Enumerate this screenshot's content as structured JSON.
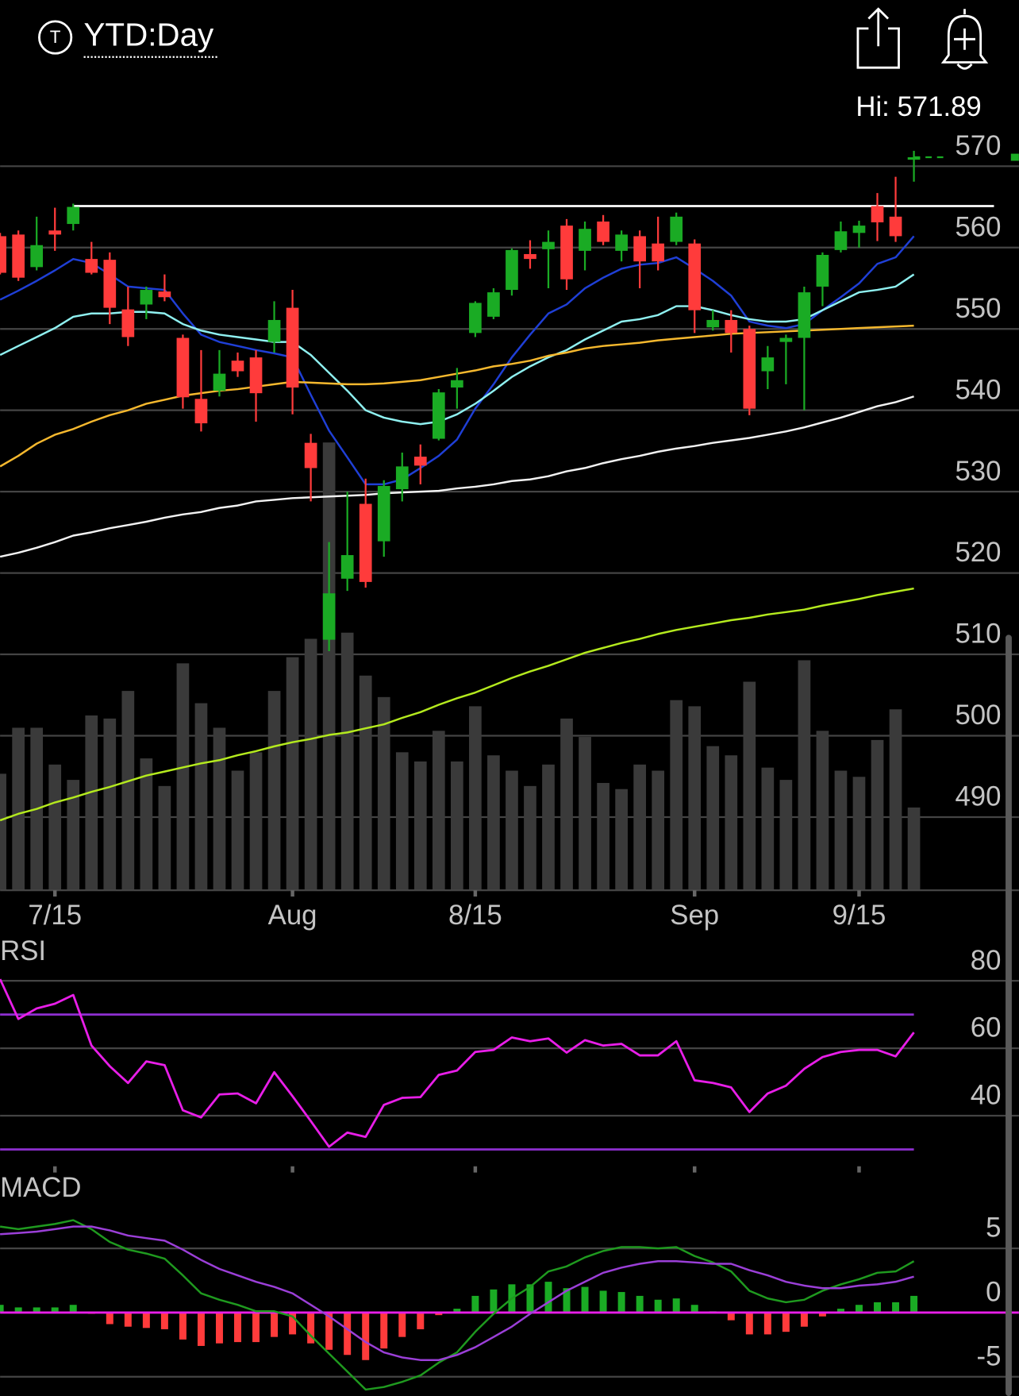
{
  "header": {
    "icon_letter": "T",
    "timeframe": "YTD:Day",
    "high_label": "Hi: 571.89"
  },
  "chart_data": [
    {
      "type": "candlestick",
      "categories": [
        null,
        null,
        null,
        "7/15",
        null,
        null,
        null,
        null,
        null,
        null,
        null,
        null,
        null,
        null,
        null,
        null,
        "Aug",
        null,
        null,
        null,
        null,
        null,
        null,
        null,
        null,
        null,
        "8/15",
        null,
        null,
        null,
        null,
        null,
        null,
        null,
        null,
        null,
        null,
        null,
        "Sep",
        null,
        null,
        null,
        null,
        null,
        null,
        null,
        null,
        "9/15",
        null,
        null,
        null
      ],
      "open": [
        561.4,
        561.6,
        557.6,
        562.1,
        562.9,
        558.6,
        558.5,
        552.4,
        553.0,
        554.6,
        548.9,
        541.4,
        542.4,
        546.1,
        546.5,
        548.4,
        552.6,
        536.0,
        511.8,
        519.3,
        528.5,
        523.9,
        530.3,
        534.3,
        536.5,
        542.8,
        549.5,
        551.5,
        554.8,
        559.2,
        559.8,
        562.7,
        559.6,
        563.2,
        559.6,
        561.4,
        560.5,
        560.7,
        560.5,
        550.2,
        551.1,
        550.0,
        544.8,
        548.4,
        548.9,
        555.2,
        559.7,
        561.8,
        565.1,
        563.8,
        570.8
      ],
      "high": [
        561.8,
        562.1,
        563.8,
        564.9,
        565.4,
        560.7,
        559.4,
        555.2,
        555.2,
        556.7,
        549.3,
        547.4,
        547.4,
        547.1,
        547.4,
        553.4,
        554.8,
        537.1,
        523.8,
        530.0,
        531.6,
        531.4,
        534.8,
        535.8,
        542.6,
        545.2,
        553.4,
        555.0,
        559.9,
        560.9,
        562.1,
        563.5,
        563.2,
        564.0,
        562.1,
        562.1,
        563.8,
        564.3,
        561.0,
        552.3,
        552.3,
        550.4,
        547.9,
        549.3,
        555.2,
        559.4,
        563.2,
        563.3,
        566.7,
        568.7,
        571.89
      ],
      "low": [
        556.7,
        555.9,
        557.2,
        559.6,
        562.1,
        556.7,
        550.6,
        547.9,
        551.2,
        553.4,
        540.2,
        537.4,
        541.7,
        544.1,
        538.6,
        547.1,
        539.5,
        528.8,
        510.4,
        517.8,
        518.2,
        522.0,
        528.8,
        530.9,
        536.3,
        540.2,
        549.0,
        551.2,
        554.1,
        557.4,
        555.0,
        554.8,
        557.2,
        560.3,
        558.3,
        555.0,
        557.2,
        560.3,
        549.5,
        549.8,
        547.1,
        539.4,
        542.6,
        543.2,
        540.0,
        552.8,
        559.4,
        560.0,
        560.8,
        560.7,
        568.1
      ],
      "close": [
        556.9,
        556.3,
        560.3,
        561.6,
        565.0,
        556.9,
        552.6,
        549.0,
        554.8,
        553.9,
        541.6,
        538.4,
        544.5,
        544.8,
        542.1,
        551.1,
        542.8,
        532.9,
        517.5,
        522.2,
        518.9,
        530.7,
        533.1,
        533.2,
        542.2,
        543.7,
        553.2,
        554.5,
        559.7,
        558.6,
        560.7,
        556.1,
        562.3,
        560.7,
        561.6,
        558.3,
        558.3,
        563.8,
        552.3,
        551.1,
        549.5,
        540.2,
        546.5,
        548.9,
        554.5,
        559.1,
        562.0,
        562.7,
        563.1,
        561.4,
        571.1
      ],
      "up_color": "#1aab24",
      "down_color": "#ff3b3b",
      "ylim": [
        481,
        575
      ],
      "yticks": [
        490,
        500,
        510,
        520,
        530,
        540,
        550,
        560,
        570
      ],
      "grid": true,
      "reference_line": {
        "value": 565.1,
        "color": "#ffffff"
      },
      "volume": {
        "color": "#3a3a3a",
        "values": [
          38,
          53,
          53,
          41,
          36,
          57,
          56,
          65,
          43,
          34,
          74,
          61,
          53,
          39,
          45,
          65,
          76,
          82,
          146,
          84,
          70,
          63,
          45,
          42,
          52,
          42,
          60,
          44,
          39,
          34,
          41,
          56,
          50,
          35,
          33,
          41,
          39,
          62,
          60,
          47,
          44,
          68,
          40,
          36,
          75,
          52,
          39,
          37,
          49,
          59,
          27
        ]
      },
      "moving_averages": [
        {
          "color": "#1f3fd6",
          "values": [
            553.6,
            554.7,
            555.9,
            557.2,
            558.6,
            558.1,
            556.7,
            555.2,
            555.0,
            554.8,
            551.9,
            549.3,
            548.4,
            547.9,
            547.4,
            547.0,
            546.5,
            541.9,
            537.5,
            534.2,
            530.9,
            530.9,
            531.5,
            532.9,
            534.4,
            536.4,
            540.2,
            543.2,
            546.5,
            549.3,
            551.9,
            553.0,
            555.0,
            556.3,
            557.4,
            557.9,
            558.1,
            558.8,
            557.4,
            555.9,
            554.1,
            550.9,
            550.4,
            550.1,
            550.6,
            552.3,
            553.9,
            555.6,
            558.0,
            558.8,
            561.4
          ]
        },
        {
          "color": "#8ff0f0",
          "values": [
            546.8,
            547.9,
            549.0,
            550.1,
            551.5,
            551.9,
            551.9,
            552.1,
            552.1,
            551.9,
            550.6,
            549.8,
            549.3,
            549.0,
            548.7,
            548.4,
            548.4,
            546.8,
            544.6,
            542.4,
            540.0,
            539.1,
            538.6,
            538.3,
            538.6,
            539.5,
            540.8,
            542.4,
            544.1,
            545.4,
            546.5,
            547.4,
            548.7,
            549.8,
            550.9,
            551.2,
            551.7,
            552.8,
            552.8,
            552.3,
            551.7,
            551.2,
            550.9,
            550.9,
            551.2,
            552.3,
            553.4,
            554.5,
            554.8,
            555.2,
            556.7
          ]
        },
        {
          "color": "#f5b82e",
          "values": [
            533.1,
            534.4,
            535.9,
            537.0,
            537.7,
            538.6,
            539.4,
            540.0,
            540.8,
            541.3,
            541.8,
            542.1,
            542.4,
            542.6,
            542.9,
            543.2,
            543.5,
            543.4,
            543.3,
            543.2,
            543.2,
            543.3,
            543.5,
            543.7,
            544.1,
            544.5,
            544.9,
            545.4,
            545.7,
            546.1,
            546.7,
            547.1,
            547.6,
            547.9,
            548.1,
            548.3,
            548.6,
            548.8,
            549.0,
            549.2,
            549.4,
            549.5,
            549.6,
            549.7,
            549.8,
            549.9,
            550.0,
            550.1,
            550.2,
            550.3,
            550.4
          ]
        },
        {
          "color": "#f2f2f2",
          "values": [
            522.0,
            522.5,
            523.1,
            523.8,
            524.6,
            525.0,
            525.5,
            525.9,
            526.3,
            526.8,
            527.2,
            527.5,
            528.0,
            528.3,
            528.8,
            529.0,
            529.2,
            529.3,
            529.4,
            529.5,
            529.6,
            529.8,
            529.9,
            530.0,
            530.1,
            530.4,
            530.6,
            530.9,
            531.3,
            531.5,
            531.9,
            532.5,
            532.9,
            533.5,
            534.0,
            534.4,
            534.9,
            535.3,
            535.6,
            536.0,
            536.3,
            536.6,
            537.0,
            537.4,
            537.9,
            538.5,
            539.1,
            539.8,
            540.5,
            541.0,
            541.7
          ]
        },
        {
          "color": "#b4ea1e",
          "values": [
            489.6,
            490.4,
            491.0,
            491.8,
            492.4,
            493.1,
            493.7,
            494.4,
            495.1,
            495.6,
            496.1,
            496.6,
            497.0,
            497.6,
            498.1,
            498.7,
            499.2,
            499.6,
            500.1,
            500.4,
            500.9,
            501.4,
            502.2,
            502.9,
            503.8,
            504.6,
            505.3,
            506.2,
            507.1,
            507.9,
            508.6,
            509.4,
            510.2,
            510.8,
            511.4,
            511.9,
            512.5,
            513.0,
            513.4,
            513.8,
            514.2,
            514.5,
            514.9,
            515.2,
            515.5,
            516.0,
            516.4,
            516.8,
            517.3,
            517.7,
            518.1
          ]
        }
      ]
    },
    {
      "type": "line",
      "title": "RSI",
      "ylim": [
        25,
        91
      ],
      "yticks": [
        40,
        60,
        80
      ],
      "grid": true,
      "bands": [
        {
          "value": 70,
          "color": "#8e2fd0"
        },
        {
          "value": 30,
          "color": "#8e2fd0"
        }
      ],
      "series": [
        {
          "color": "#e81ee8",
          "values": [
            80.5,
            68.7,
            71.8,
            73.2,
            75.8,
            60.8,
            54.7,
            49.7,
            56.1,
            55.0,
            41.6,
            39.5,
            46.3,
            46.6,
            43.7,
            52.9,
            45.8,
            38.4,
            30.8,
            35.0,
            33.7,
            43.2,
            45.3,
            45.5,
            52.1,
            53.4,
            58.9,
            59.5,
            63.2,
            62.1,
            62.9,
            58.7,
            62.4,
            60.8,
            61.3,
            57.9,
            57.9,
            62.1,
            50.5,
            49.7,
            48.4,
            41.1,
            46.6,
            48.9,
            53.9,
            57.4,
            58.9,
            59.5,
            59.5,
            57.6,
            64.7
          ]
        }
      ]
    },
    {
      "type": "macd",
      "title": "MACD",
      "ylim": [
        -6.5,
        10.7
      ],
      "yticks": [
        -5,
        0,
        5
      ],
      "grid": true,
      "zero_color": "#e81ee8",
      "histogram": {
        "up_color": "#1aab24",
        "down_color": "#ff3b3b",
        "values": [
          0.6,
          0.4,
          0.4,
          0.4,
          0.6,
          -0.1,
          -0.9,
          -1.1,
          -1.2,
          -1.3,
          -2.1,
          -2.6,
          -2.4,
          -2.3,
          -2.3,
          -1.9,
          -1.7,
          -2.4,
          -2.9,
          -3.3,
          -3.7,
          -2.8,
          -1.9,
          -1.3,
          -0.2,
          0.3,
          1.3,
          1.8,
          2.2,
          2.2,
          2.4,
          1.9,
          2.0,
          1.7,
          1.6,
          1.3,
          1.0,
          1.1,
          0.6,
          0.1,
          -0.6,
          -1.7,
          -1.7,
          -1.5,
          -1.1,
          -0.3,
          0.3,
          0.6,
          0.8,
          0.8,
          1.3
        ]
      },
      "series": [
        {
          "color": "#1f9a1f",
          "values": [
            6.7,
            6.5,
            6.7,
            6.9,
            7.2,
            6.5,
            5.5,
            4.9,
            4.6,
            4.2,
            2.9,
            1.5,
            1.0,
            0.6,
            0.1,
            0.1,
            -0.3,
            -1.8,
            -3.2,
            -4.6,
            -6.0,
            -5.8,
            -5.4,
            -4.9,
            -3.9,
            -3.1,
            -1.5,
            -0.1,
            1.1,
            2.0,
            3.2,
            3.6,
            4.3,
            4.8,
            5.1,
            5.1,
            5.0,
            5.1,
            4.4,
            3.9,
            3.2,
            1.7,
            1.1,
            0.8,
            1.0,
            1.7,
            2.2,
            2.6,
            3.1,
            3.2,
            4.0
          ]
        },
        {
          "color": "#9b3fd8",
          "values": [
            6.1,
            6.2,
            6.3,
            6.5,
            6.7,
            6.7,
            6.4,
            6.0,
            5.8,
            5.6,
            4.9,
            4.1,
            3.4,
            2.9,
            2.4,
            2.0,
            1.5,
            0.6,
            -0.3,
            -1.3,
            -2.3,
            -3.1,
            -3.5,
            -3.7,
            -3.7,
            -3.3,
            -2.7,
            -1.9,
            -1.1,
            -0.1,
            0.8,
            1.7,
            2.4,
            3.1,
            3.5,
            3.8,
            4.0,
            4.0,
            3.9,
            3.8,
            3.8,
            3.3,
            2.9,
            2.4,
            2.1,
            1.9,
            1.9,
            2.1,
            2.2,
            2.4,
            2.8
          ]
        }
      ]
    }
  ]
}
